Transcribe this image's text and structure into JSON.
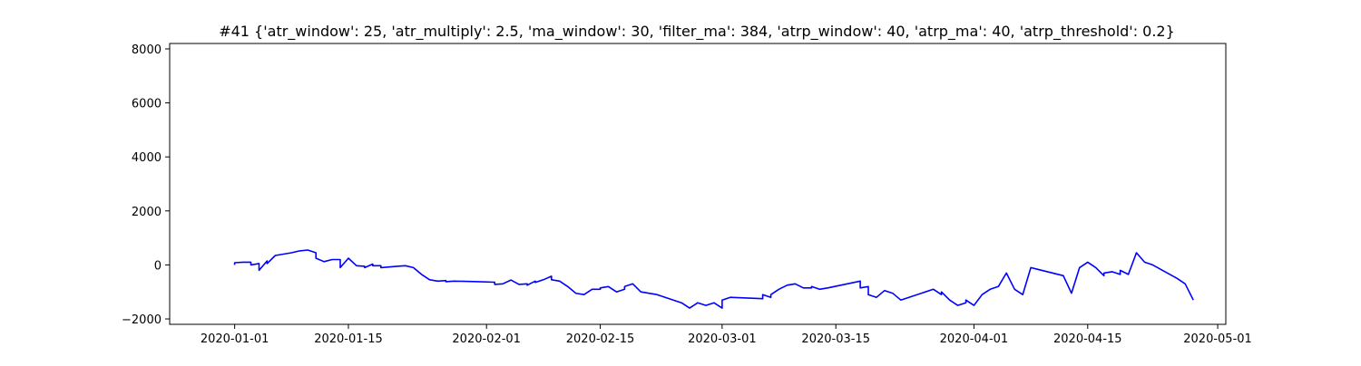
{
  "chart_data": {
    "type": "line",
    "title": "#41 {'atr_window': 25, 'atr_multiply': 2.5, 'ma_window': 30, 'filter_ma': 384, 'atrp_window': 40, 'atrp_ma': 40, 'atrp_threshold': 0.2}",
    "xlabel": "",
    "ylabel": "",
    "xlim": [
      "2019-12-24",
      "2020-05-02"
    ],
    "ylim": [
      -2200,
      8200
    ],
    "grid": false,
    "legend": "none",
    "line_color": "#0000ff",
    "x_ticks": [
      "2020-01-01",
      "2020-01-15",
      "2020-02-01",
      "2020-02-15",
      "2020-03-01",
      "2020-03-15",
      "2020-04-01",
      "2020-04-15",
      "2020-05-01"
    ],
    "y_ticks": [
      -2000,
      0,
      2000,
      4000,
      6000,
      8000
    ],
    "y_tick_labels": [
      "−2000",
      "0",
      "2000",
      "4000",
      "6000",
      "8000"
    ],
    "series": [
      {
        "points": [
          [
            "2020-01-01",
            0
          ],
          [
            "2020-01-01",
            80
          ],
          [
            "2020-01-02",
            100
          ],
          [
            "2020-01-03",
            100
          ],
          [
            "2020-01-03",
            0
          ],
          [
            "2020-01-04",
            50
          ],
          [
            "2020-01-04",
            -200
          ],
          [
            "2020-01-05",
            150
          ],
          [
            "2020-01-05",
            50
          ],
          [
            "2020-01-06",
            350
          ],
          [
            "2020-01-08",
            450
          ],
          [
            "2020-01-09",
            520
          ],
          [
            "2020-01-10",
            550
          ],
          [
            "2020-01-11",
            450
          ],
          [
            "2020-01-11",
            250
          ],
          [
            "2020-01-12",
            120
          ],
          [
            "2020-01-13",
            200
          ],
          [
            "2020-01-14",
            200
          ],
          [
            "2020-01-14",
            -100
          ],
          [
            "2020-01-15",
            250
          ],
          [
            "2020-01-16",
            -30
          ],
          [
            "2020-01-17",
            -50
          ],
          [
            "2020-01-17",
            -100
          ],
          [
            "2020-01-18",
            30
          ],
          [
            "2020-01-18",
            -30
          ],
          [
            "2020-01-19",
            -30
          ],
          [
            "2020-01-19",
            -100
          ],
          [
            "2020-01-21",
            -50
          ],
          [
            "2020-01-22",
            -30
          ],
          [
            "2020-01-23",
            -100
          ],
          [
            "2020-01-24",
            -350
          ],
          [
            "2020-01-25",
            -550
          ],
          [
            "2020-01-26",
            -600
          ],
          [
            "2020-01-27",
            -580
          ],
          [
            "2020-01-27",
            -620
          ],
          [
            "2020-01-28",
            -600
          ],
          [
            "2020-01-31",
            -620
          ],
          [
            "2020-02-02",
            -640
          ],
          [
            "2020-02-02",
            -720
          ],
          [
            "2020-02-03",
            -700
          ],
          [
            "2020-02-04",
            -560
          ],
          [
            "2020-02-05",
            -720
          ],
          [
            "2020-02-06",
            -700
          ],
          [
            "2020-02-06",
            -750
          ],
          [
            "2020-02-07",
            -600
          ],
          [
            "2020-02-07",
            -650
          ],
          [
            "2020-02-08",
            -550
          ],
          [
            "2020-02-09",
            -420
          ],
          [
            "2020-02-09",
            -550
          ],
          [
            "2020-02-10",
            -600
          ],
          [
            "2020-02-11",
            -800
          ],
          [
            "2020-02-12",
            -1050
          ],
          [
            "2020-02-13",
            -1100
          ],
          [
            "2020-02-14",
            -900
          ],
          [
            "2020-02-15",
            -900
          ],
          [
            "2020-02-15",
            -850
          ],
          [
            "2020-02-16",
            -800
          ],
          [
            "2020-02-17",
            -1000
          ],
          [
            "2020-02-18",
            -900
          ],
          [
            "2020-02-18",
            -800
          ],
          [
            "2020-02-19",
            -700
          ],
          [
            "2020-02-20",
            -1000
          ],
          [
            "2020-02-22",
            -1100
          ],
          [
            "2020-02-24",
            -1300
          ],
          [
            "2020-02-25",
            -1400
          ],
          [
            "2020-02-26",
            -1600
          ],
          [
            "2020-02-27",
            -1400
          ],
          [
            "2020-02-28",
            -1500
          ],
          [
            "2020-02-29",
            -1400
          ],
          [
            "2020-03-01",
            -1600
          ],
          [
            "2020-03-01",
            -1300
          ],
          [
            "2020-03-02",
            -1200
          ],
          [
            "2020-03-06",
            -1250
          ],
          [
            "2020-03-06",
            -1100
          ],
          [
            "2020-03-07",
            -1200
          ],
          [
            "2020-03-07",
            -1100
          ],
          [
            "2020-03-08",
            -900
          ],
          [
            "2020-03-09",
            -750
          ],
          [
            "2020-03-10",
            -700
          ],
          [
            "2020-03-11",
            -850
          ],
          [
            "2020-03-12",
            -850
          ],
          [
            "2020-03-12",
            -800
          ],
          [
            "2020-03-13",
            -900
          ],
          [
            "2020-03-14",
            -850
          ],
          [
            "2020-03-18",
            -600
          ],
          [
            "2020-03-18",
            -850
          ],
          [
            "2020-03-19",
            -800
          ],
          [
            "2020-03-19",
            -1100
          ],
          [
            "2020-03-20",
            -1200
          ],
          [
            "2020-03-21",
            -950
          ],
          [
            "2020-03-22",
            -1050
          ],
          [
            "2020-03-23",
            -1300
          ],
          [
            "2020-03-27",
            -900
          ],
          [
            "2020-03-28",
            -1100
          ],
          [
            "2020-03-28",
            -1000
          ],
          [
            "2020-03-29",
            -1300
          ],
          [
            "2020-03-30",
            -1500
          ],
          [
            "2020-03-31",
            -1400
          ],
          [
            "2020-03-31",
            -1300
          ],
          [
            "2020-04-01",
            -1500
          ],
          [
            "2020-04-02",
            -1100
          ],
          [
            "2020-04-03",
            -900
          ],
          [
            "2020-04-04",
            -800
          ],
          [
            "2020-04-05",
            -300
          ],
          [
            "2020-04-06",
            -900
          ],
          [
            "2020-04-07",
            -1100
          ],
          [
            "2020-04-08",
            -100
          ],
          [
            "2020-04-12",
            -400
          ],
          [
            "2020-04-13",
            -1050
          ],
          [
            "2020-04-14",
            -100
          ],
          [
            "2020-04-15",
            100
          ],
          [
            "2020-04-16",
            -100
          ],
          [
            "2020-04-17",
            -400
          ],
          [
            "2020-04-17",
            -300
          ],
          [
            "2020-04-18",
            -250
          ],
          [
            "2020-04-19",
            -350
          ],
          [
            "2020-04-19",
            -200
          ],
          [
            "2020-04-20",
            -350
          ],
          [
            "2020-04-21",
            450
          ],
          [
            "2020-04-22",
            100
          ],
          [
            "2020-04-23",
            0
          ],
          [
            "2020-04-26",
            -500
          ],
          [
            "2020-04-27",
            -700
          ],
          [
            "2020-04-28",
            -1300
          ]
        ]
      }
    ]
  }
}
